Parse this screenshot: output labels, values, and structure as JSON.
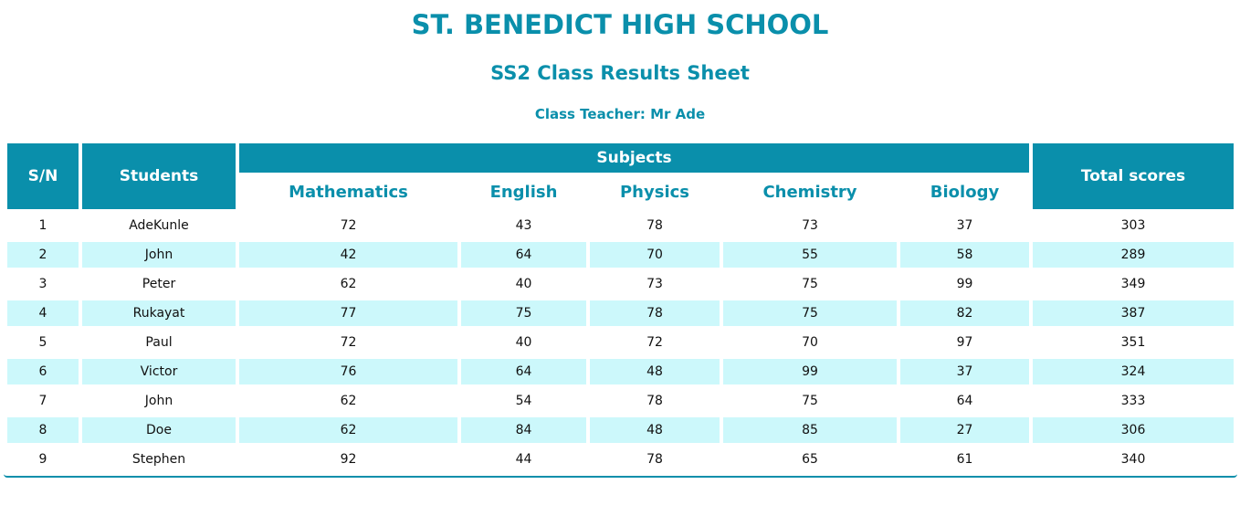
{
  "header": {
    "school_name": "ST. BENEDICT HIGH SCHOOL",
    "sheet_title": "SS2 Class Results Sheet",
    "teacher": "Class Teacher: Mr Ade"
  },
  "table": {
    "col_sn": "S/N",
    "col_students": "Students",
    "col_subjects": "Subjects",
    "col_total": "Total scores",
    "subjects": [
      "Mathematics",
      "English",
      "Physics",
      "Chemistry",
      "Biology"
    ],
    "rows": [
      {
        "sn": "1",
        "name": "AdeKunle",
        "math": "72",
        "eng": "43",
        "phy": "78",
        "chem": "73",
        "bio": "37",
        "total": "303"
      },
      {
        "sn": "2",
        "name": "John",
        "math": "42",
        "eng": "64",
        "phy": "70",
        "chem": "55",
        "bio": "58",
        "total": "289"
      },
      {
        "sn": "3",
        "name": "Peter",
        "math": "62",
        "eng": "40",
        "phy": "73",
        "chem": "75",
        "bio": "99",
        "total": "349"
      },
      {
        "sn": "4",
        "name": "Rukayat",
        "math": "77",
        "eng": "75",
        "phy": "78",
        "chem": "75",
        "bio": "82",
        "total": "387"
      },
      {
        "sn": "5",
        "name": "Paul",
        "math": "72",
        "eng": "40",
        "phy": "72",
        "chem": "70",
        "bio": "97",
        "total": "351"
      },
      {
        "sn": "6",
        "name": "Victor",
        "math": "76",
        "eng": "64",
        "phy": "48",
        "chem": "99",
        "bio": "37",
        "total": "324"
      },
      {
        "sn": "7",
        "name": "John",
        "math": "62",
        "eng": "54",
        "phy": "78",
        "chem": "75",
        "bio": "64",
        "total": "333"
      },
      {
        "sn": "8",
        "name": "Doe",
        "math": "62",
        "eng": "84",
        "phy": "48",
        "chem": "85",
        "bio": "27",
        "total": "306"
      },
      {
        "sn": "9",
        "name": "Stephen",
        "math": "92",
        "eng": "44",
        "phy": "78",
        "chem": "65",
        "bio": "61",
        "total": "340"
      }
    ]
  },
  "colors": {
    "accent": "#0a8fab",
    "stripe": "#ccf8fb"
  }
}
